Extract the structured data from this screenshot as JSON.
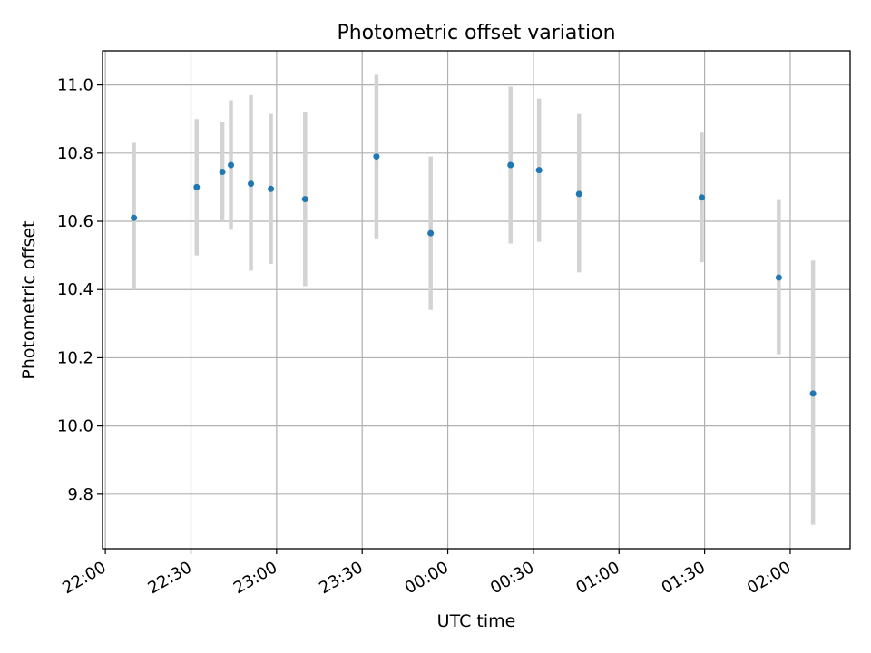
{
  "chart_data": {
    "type": "scatter",
    "title": "Photometric offset variation",
    "xlabel": "UTC time",
    "ylabel": "Photometric offset",
    "grid": true,
    "xlim": [
      "21:59",
      "02:21"
    ],
    "ylim": [
      9.64,
      11.1
    ],
    "x_ticks": [
      "22:00",
      "22:30",
      "23:00",
      "23:30",
      "00:00",
      "00:30",
      "01:00",
      "01:30",
      "02:00"
    ],
    "y_ticks": [
      "9.8",
      "10.0",
      "10.2",
      "10.4",
      "10.6",
      "10.8",
      "11.0"
    ],
    "series": [
      {
        "x": [
          "22:10",
          "22:32",
          "22:41",
          "22:44",
          "22:51",
          "22:58",
          "23:10",
          "23:35",
          "23:54",
          "00:22",
          "00:32",
          "00:46",
          "01:29",
          "01:56",
          "02:08"
        ],
        "y": [
          10.61,
          10.7,
          10.745,
          10.765,
          10.71,
          10.695,
          10.665,
          10.79,
          10.565,
          10.765,
          10.75,
          10.68,
          10.67,
          10.435,
          10.095
        ],
        "err_low": [
          10.4,
          10.5,
          10.6,
          10.575,
          10.455,
          10.475,
          10.41,
          10.55,
          10.34,
          10.535,
          10.54,
          10.45,
          10.48,
          10.21,
          9.71
        ],
        "err_high": [
          10.83,
          10.9,
          10.89,
          10.955,
          10.97,
          10.915,
          10.92,
          11.03,
          10.79,
          10.995,
          10.96,
          10.915,
          10.86,
          10.665,
          10.485
        ]
      }
    ],
    "colors": {
      "point": "#1f77b4",
      "errorbar": "#d3d3d3",
      "grid": "#b0b0b0"
    }
  }
}
